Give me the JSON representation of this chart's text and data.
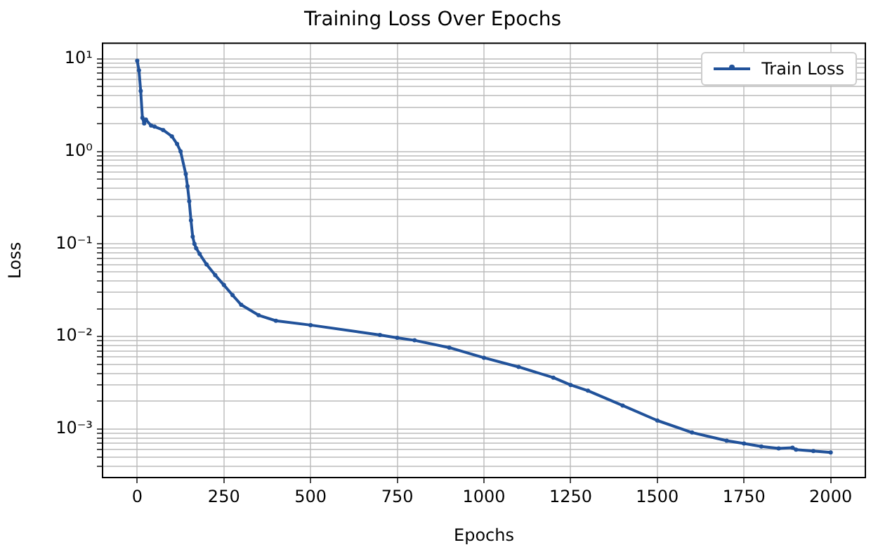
{
  "chart_data": {
    "type": "line",
    "title": "Training Loss Over Epochs",
    "xlabel": "Epochs",
    "ylabel": "Loss",
    "log": "y",
    "grid": true,
    "legend": "top right",
    "marker": "circle",
    "line_style": "solid",
    "xlim": [
      -100,
      2100
    ],
    "xticks": [
      0,
      250,
      500,
      750,
      1000,
      1250,
      1500,
      1750,
      2000
    ],
    "ylim": [
      0.00033,
      14.7
    ],
    "yticks": [
      {
        "value": 0.0004,
        "label": null
      },
      {
        "value": 0.0005,
        "label": null
      },
      {
        "value": 0.0006,
        "label": null
      },
      {
        "value": 0.0007,
        "label": null
      },
      {
        "value": 0.0008,
        "label": null
      },
      {
        "value": 0.0009,
        "label": null
      },
      {
        "value": 0.001,
        "label": "10⁻³"
      },
      {
        "value": 0.002,
        "label": null
      },
      {
        "value": 0.003,
        "label": null
      },
      {
        "value": 0.004,
        "label": null
      },
      {
        "value": 0.005,
        "label": null
      },
      {
        "value": 0.006,
        "label": null
      },
      {
        "value": 0.007,
        "label": null
      },
      {
        "value": 0.008,
        "label": null
      },
      {
        "value": 0.009,
        "label": null
      },
      {
        "value": 0.01,
        "label": "10⁻²"
      },
      {
        "value": 0.02,
        "label": null
      },
      {
        "value": 0.03,
        "label": null
      },
      {
        "value": 0.04,
        "label": null
      },
      {
        "value": 0.05,
        "label": null
      },
      {
        "value": 0.06,
        "label": null
      },
      {
        "value": 0.07,
        "label": null
      },
      {
        "value": 0.08,
        "label": null
      },
      {
        "value": 0.09,
        "label": null
      },
      {
        "value": 0.1,
        "label": "10⁻¹"
      },
      {
        "value": 0.2,
        "label": null
      },
      {
        "value": 0.3,
        "label": null
      },
      {
        "value": 0.4,
        "label": null
      },
      {
        "value": 0.5,
        "label": null
      },
      {
        "value": 0.6,
        "label": null
      },
      {
        "value": 0.7,
        "label": null
      },
      {
        "value": 0.8,
        "label": null
      },
      {
        "value": 0.9,
        "label": null
      },
      {
        "value": 1,
        "label": "10⁰"
      },
      {
        "value": 2,
        "label": null
      },
      {
        "value": 3,
        "label": null
      },
      {
        "value": 4,
        "label": null
      },
      {
        "value": 5,
        "label": null
      },
      {
        "value": 6,
        "label": null
      },
      {
        "value": 7,
        "label": null
      },
      {
        "value": 8,
        "label": null
      },
      {
        "value": 9,
        "label": null
      },
      {
        "value": 10,
        "label": "10¹"
      }
    ],
    "x": [
      0,
      5,
      10,
      15,
      20,
      25,
      40,
      50,
      75,
      100,
      115,
      125,
      140,
      145,
      150,
      155,
      160,
      165,
      170,
      180,
      200,
      225,
      250,
      275,
      300,
      350,
      400,
      500,
      700,
      750,
      800,
      900,
      1000,
      1100,
      1200,
      1250,
      1300,
      1400,
      1500,
      1600,
      1700,
      1750,
      1800,
      1850,
      1890,
      1900,
      1950,
      2000
    ],
    "series": [
      {
        "name": "Train Loss",
        "color": "#21529a",
        "values": [
          9.5,
          7.5,
          4.5,
          2.3,
          2.0,
          2.2,
          1.9,
          1.85,
          1.7,
          1.45,
          1.2,
          1.0,
          0.57,
          0.42,
          0.29,
          0.18,
          0.12,
          0.1,
          0.09,
          0.078,
          0.06,
          0.046,
          0.036,
          0.028,
          0.022,
          0.017,
          0.0148,
          0.0133,
          0.0104,
          0.0097,
          0.0091,
          0.0076,
          0.0059,
          0.0047,
          0.0036,
          0.003,
          0.0026,
          0.0018,
          0.00124,
          0.00092,
          0.00075,
          0.0007,
          0.00065,
          0.00062,
          0.00063,
          0.0006,
          0.00058,
          0.00056
        ]
      }
    ]
  }
}
